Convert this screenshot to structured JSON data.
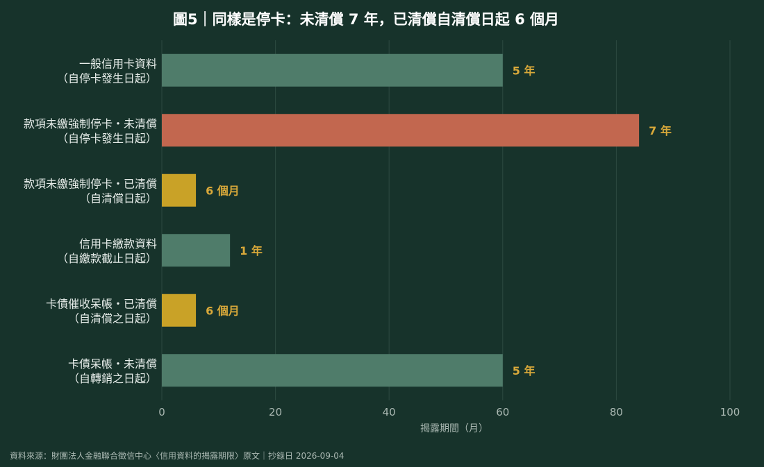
{
  "chart_data": {
    "type": "bar",
    "orientation": "horizontal",
    "title": "圖5｜同樣是停卡：未清償 7 年，已清償自清償日起 6 個月",
    "xlabel": "揭露期間（月）",
    "ylabel": "",
    "xlim": [
      0,
      100
    ],
    "xticks": [
      0,
      20,
      40,
      60,
      80,
      100
    ],
    "grid": true,
    "categories": [
      {
        "line1": "一般信用卡資料",
        "line2": "（自停卡發生日起）"
      },
      {
        "line1": "款項未繳強制停卡・未清償",
        "line2": "（自停卡發生日起）"
      },
      {
        "line1": "款項未繳強制停卡・已清償",
        "line2": "（自清償日起）"
      },
      {
        "line1": "信用卡繳款資料",
        "line2": "（自繳款截止日起）"
      },
      {
        "line1": "卡債催收呆帳・已清償",
        "line2": "（自清償之日起）"
      },
      {
        "line1": "卡債呆帳・未清償",
        "line2": "（自轉銷之日起）"
      }
    ],
    "values": [
      60,
      84,
      6,
      12,
      6,
      60
    ],
    "data_labels": [
      "5 年",
      "7 年",
      "6 個月",
      "1 年",
      "6 個月",
      "5 年"
    ],
    "bar_colors": [
      "#4f7c6a",
      "#c2674f",
      "#c9a227",
      "#4f7c6a",
      "#c9a227",
      "#4f7c6a"
    ]
  },
  "colors": {
    "background": "#17332b",
    "grid": "#2d4a41",
    "data_label": "#d9a93a",
    "title": "#ffffff"
  },
  "source": "資料來源：財團法人金融聯合徵信中心〈信用資料的揭露期限〉原文｜抄錄日 2026-09-04"
}
